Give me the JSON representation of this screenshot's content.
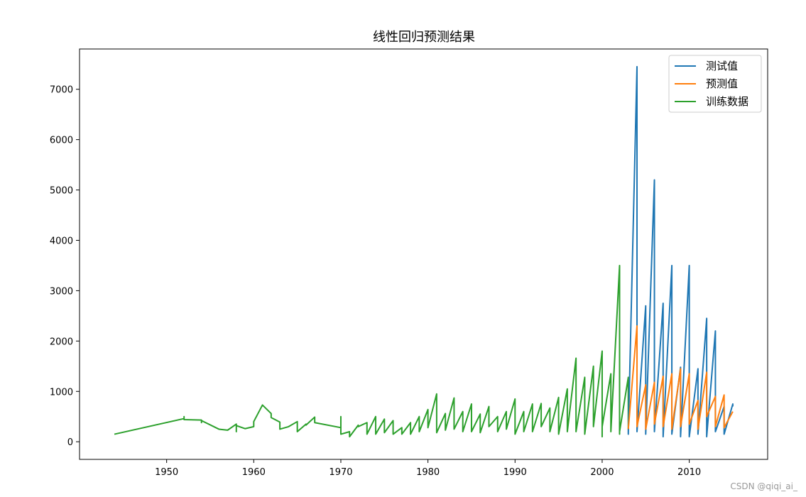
{
  "chart_data": {
    "type": "line",
    "title": "线性回归预测结果",
    "xlabel": "",
    "ylabel": "",
    "xlim": [
      1940,
      2019
    ],
    "ylim": [
      -350,
      7800
    ],
    "xticks": [
      1950,
      1960,
      1970,
      1980,
      1990,
      2000,
      2010
    ],
    "yticks": [
      0,
      1000,
      2000,
      3000,
      4000,
      5000,
      6000,
      7000
    ],
    "grid": false,
    "legend_position": "top-right",
    "series": [
      {
        "name": "测试值",
        "color": "#1f77b4",
        "points": [
          [
            2003,
            250
          ],
          [
            2003,
            150
          ],
          [
            2004,
            7450
          ],
          [
            2004,
            500
          ],
          [
            2004,
            200
          ],
          [
            2005,
            2700
          ],
          [
            2005,
            300
          ],
          [
            2005,
            150
          ],
          [
            2006,
            5200
          ],
          [
            2006,
            400
          ],
          [
            2006,
            200
          ],
          [
            2007,
            2750
          ],
          [
            2007,
            250
          ],
          [
            2007,
            100
          ],
          [
            2008,
            3500
          ],
          [
            2008,
            350
          ],
          [
            2008,
            150
          ],
          [
            2009,
            1480
          ],
          [
            2009,
            100
          ],
          [
            2010,
            3500
          ],
          [
            2010,
            500
          ],
          [
            2010,
            100
          ],
          [
            2011,
            1450
          ],
          [
            2011,
            300
          ],
          [
            2011,
            150
          ],
          [
            2012,
            2450
          ],
          [
            2012,
            250
          ],
          [
            2012,
            100
          ],
          [
            2013,
            2200
          ],
          [
            2013,
            300
          ],
          [
            2013,
            200
          ],
          [
            2014,
            700
          ],
          [
            2014,
            150
          ],
          [
            2015,
            750
          ],
          [
            2015,
            700
          ]
        ]
      },
      {
        "name": "预测值",
        "color": "#ff7f0e",
        "points": [
          [
            2003,
            250
          ],
          [
            2004,
            2300
          ],
          [
            2004,
            300
          ],
          [
            2005,
            1130
          ],
          [
            2005,
            250
          ],
          [
            2006,
            1180
          ],
          [
            2006,
            350
          ],
          [
            2007,
            1300
          ],
          [
            2007,
            300
          ],
          [
            2008,
            1350
          ],
          [
            2008,
            250
          ],
          [
            2009,
            1450
          ],
          [
            2009,
            300
          ],
          [
            2010,
            1350
          ],
          [
            2010,
            350
          ],
          [
            2011,
            820
          ],
          [
            2011,
            250
          ],
          [
            2012,
            1380
          ],
          [
            2012,
            500
          ],
          [
            2013,
            900
          ],
          [
            2013,
            300
          ],
          [
            2014,
            930
          ],
          [
            2014,
            280
          ],
          [
            2015,
            600
          ]
        ]
      },
      {
        "name": "训练数据",
        "color": "#2ca02c",
        "points": [
          [
            1944,
            150
          ],
          [
            1952,
            460
          ],
          [
            1952,
            500
          ],
          [
            1952,
            440
          ],
          [
            1954,
            430
          ],
          [
            1954,
            380
          ],
          [
            1954,
            420
          ],
          [
            1956,
            250
          ],
          [
            1957,
            230
          ],
          [
            1958,
            350
          ],
          [
            1958,
            200
          ],
          [
            1958,
            320
          ],
          [
            1959,
            260
          ],
          [
            1960,
            300
          ],
          [
            1960,
            400
          ],
          [
            1961,
            730
          ],
          [
            1962,
            560
          ],
          [
            1962,
            480
          ],
          [
            1963,
            390
          ],
          [
            1963,
            250
          ],
          [
            1964,
            300
          ],
          [
            1965,
            400
          ],
          [
            1965,
            200
          ],
          [
            1966,
            350
          ],
          [
            1966,
            330
          ],
          [
            1967,
            490
          ],
          [
            1967,
            380
          ],
          [
            1970,
            280
          ],
          [
            1970,
            500
          ],
          [
            1970,
            150
          ],
          [
            1971,
            200
          ],
          [
            1971,
            100
          ],
          [
            1972,
            330
          ],
          [
            1972,
            300
          ],
          [
            1973,
            380
          ],
          [
            1973,
            150
          ],
          [
            1974,
            500
          ],
          [
            1974,
            150
          ],
          [
            1975,
            450
          ],
          [
            1975,
            180
          ],
          [
            1976,
            420
          ],
          [
            1976,
            150
          ],
          [
            1977,
            280
          ],
          [
            1977,
            150
          ],
          [
            1978,
            380
          ],
          [
            1978,
            150
          ],
          [
            1979,
            500
          ],
          [
            1979,
            200
          ],
          [
            1980,
            640
          ],
          [
            1980,
            280
          ],
          [
            1981,
            950
          ],
          [
            1981,
            350
          ],
          [
            1981,
            180
          ],
          [
            1982,
            560
          ],
          [
            1982,
            230
          ],
          [
            1983,
            870
          ],
          [
            1983,
            250
          ],
          [
            1984,
            600
          ],
          [
            1984,
            200
          ],
          [
            1985,
            750
          ],
          [
            1985,
            400
          ],
          [
            1985,
            200
          ],
          [
            1986,
            550
          ],
          [
            1986,
            180
          ],
          [
            1987,
            700
          ],
          [
            1987,
            300
          ],
          [
            1988,
            500
          ],
          [
            1988,
            200
          ],
          [
            1989,
            600
          ],
          [
            1989,
            250
          ],
          [
            1990,
            850
          ],
          [
            1990,
            400
          ],
          [
            1990,
            150
          ],
          [
            1991,
            600
          ],
          [
            1991,
            200
          ],
          [
            1992,
            750
          ],
          [
            1992,
            200
          ],
          [
            1993,
            760
          ],
          [
            1993,
            300
          ],
          [
            1994,
            670
          ],
          [
            1994,
            200
          ],
          [
            1995,
            880
          ],
          [
            1995,
            400
          ],
          [
            1995,
            150
          ],
          [
            1996,
            1050
          ],
          [
            1996,
            400
          ],
          [
            1996,
            200
          ],
          [
            1997,
            1660
          ],
          [
            1997,
            450
          ],
          [
            1997,
            200
          ],
          [
            1998,
            1280
          ],
          [
            1998,
            400
          ],
          [
            1998,
            150
          ],
          [
            1999,
            1500
          ],
          [
            1999,
            300
          ],
          [
            2000,
            1800
          ],
          [
            2000,
            100
          ],
          [
            2000,
            300
          ],
          [
            2001,
            1350
          ],
          [
            2001,
            400
          ],
          [
            2001,
            200
          ],
          [
            2002,
            3500
          ],
          [
            2002,
            150
          ],
          [
            2002,
            200
          ],
          [
            2003,
            1280
          ],
          [
            2003,
            250
          ]
        ]
      }
    ]
  },
  "watermark": "CSDN @qiqi_ai_"
}
